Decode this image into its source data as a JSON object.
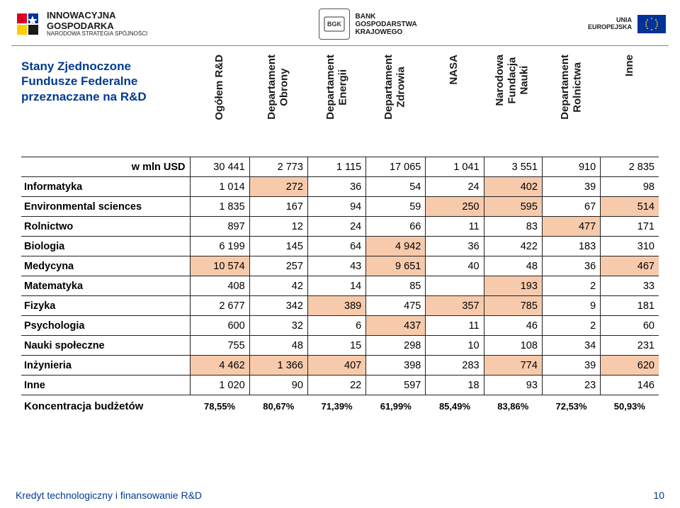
{
  "header": {
    "left_logo_primary": "INNOWACYJNA",
    "left_logo_secondary": "GOSPODARKA",
    "left_logo_sub": "NARODOWA STRATEGIA SPÓJNOŚCI",
    "center_logo_line1": "BANK",
    "center_logo_line2": "GOSPODARSTWA",
    "center_logo_line3": "KRAJOWEGO",
    "right_text_line1": "UNIA",
    "right_text_line2": "EUROPEJSKA"
  },
  "title_line1": "Stany Zjednoczone",
  "title_line2": "Fundusze Federalne",
  "title_line3": "przeznaczane na R&D",
  "columns": [
    "Ogółem R&D",
    "Departament\nObrony",
    "Departament\nEnergii",
    "Departament\nZdrowia",
    "NASA",
    "Narodowa\nFundacja\nNauki",
    "Departament\nRolnictwa",
    "Inne"
  ],
  "unit_row_label": "w mln USD",
  "rows": [
    {
      "label": "w mln USD",
      "bold_label": true,
      "cells": [
        "30 441",
        "2 773",
        "1 115",
        "17 065",
        "1 041",
        "3 551",
        "910",
        "2 835"
      ],
      "hl": []
    },
    {
      "label": "Informatyka",
      "cells": [
        "1 014",
        "272",
        "36",
        "54",
        "24",
        "402",
        "39",
        "98"
      ],
      "hl": [
        1,
        5
      ]
    },
    {
      "label": "Environmental sciences",
      "cells": [
        "1 835",
        "167",
        "94",
        "59",
        "250",
        "595",
        "67",
        "514"
      ],
      "hl": [
        4,
        5,
        7
      ]
    },
    {
      "label": "Rolnictwo",
      "cells": [
        "897",
        "12",
        "24",
        "66",
        "11",
        "83",
        "477",
        "171"
      ],
      "hl": [
        6
      ]
    },
    {
      "label": "Biologia",
      "cells": [
        "6 199",
        "145",
        "64",
        "4 942",
        "36",
        "422",
        "183",
        "310"
      ],
      "hl": [
        3
      ]
    },
    {
      "label": "Medycyna",
      "cells": [
        "10 574",
        "257",
        "43",
        "9 651",
        "40",
        "48",
        "36",
        "467"
      ],
      "hl": [
        0,
        3,
        7
      ]
    },
    {
      "label": "Matematyka",
      "cells": [
        "408",
        "42",
        "14",
        "85",
        "",
        "193",
        "2",
        "33"
      ],
      "hl": [
        5
      ]
    },
    {
      "label": "Fizyka",
      "cells": [
        "2 677",
        "342",
        "389",
        "475",
        "357",
        "785",
        "9",
        "181"
      ],
      "hl": [
        2,
        4,
        5
      ]
    },
    {
      "label": "Psychologia",
      "cells": [
        "600",
        "32",
        "6",
        "437",
        "11",
        "46",
        "2",
        "60"
      ],
      "hl": [
        3
      ]
    },
    {
      "label": "Nauki społeczne",
      "cells": [
        "755",
        "48",
        "15",
        "298",
        "10",
        "108",
        "34",
        "231"
      ],
      "hl": []
    },
    {
      "label": "Inżynieria",
      "cells": [
        "4 462",
        "1 366",
        "407",
        "398",
        "283",
        "774",
        "39",
        "620"
      ],
      "hl": [
        0,
        1,
        2,
        5,
        7
      ]
    },
    {
      "label": "Inne",
      "cells": [
        "1 020",
        "90",
        "22",
        "597",
        "18",
        "93",
        "23",
        "146"
      ],
      "hl": []
    }
  ],
  "summary": {
    "label": "Koncentracja budżetów",
    "cells": [
      "78,55%",
      "80,67%",
      "71,39%",
      "61,99%",
      "85,49%",
      "83,86%",
      "72,53%",
      "50,93%"
    ]
  },
  "colors": {
    "highlight_bg": "#f7caac",
    "title_color": "#003b8f",
    "border": "#222222"
  },
  "footer": {
    "text": "Kredyt technologiczny i finansowanie R&D",
    "page": "10"
  }
}
